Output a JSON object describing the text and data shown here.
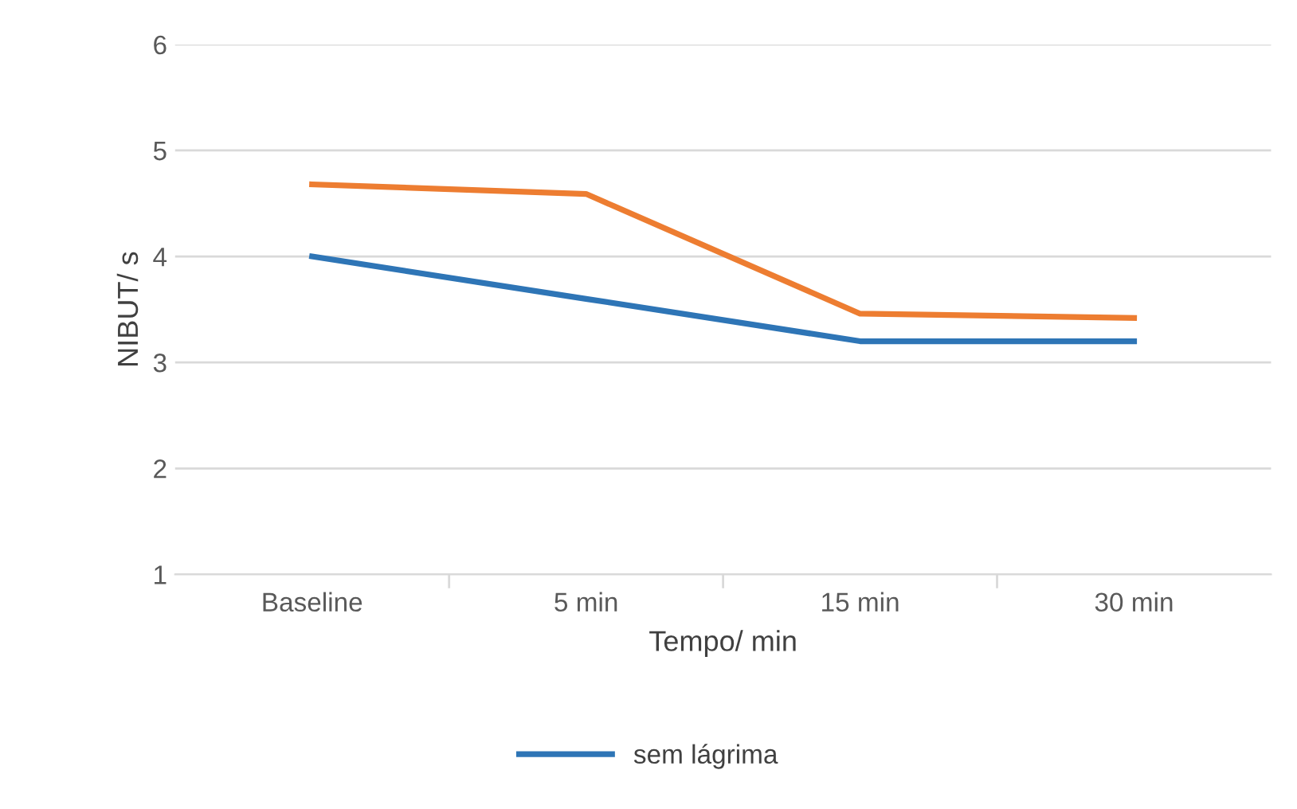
{
  "chart_data": {
    "type": "line",
    "xlabel": "Tempo/ min",
    "ylabel": "NIBUT/ s",
    "categories": [
      "Baseline",
      "5 min",
      "15 min",
      "30 min"
    ],
    "series": [
      {
        "name": "sem lágrima",
        "color": "#2e75b6",
        "values": [
          4.0,
          3.6,
          3.2,
          3.2
        ]
      },
      {
        "color": "#ed7d31",
        "values": [
          4.68,
          4.59,
          3.46,
          3.42
        ]
      }
    ],
    "ylim": [
      1,
      6
    ],
    "yticks": [
      1,
      2,
      3,
      4,
      5,
      6
    ],
    "grid": "y",
    "legend": "bottom",
    "marker": "none",
    "line_style": "solid"
  }
}
